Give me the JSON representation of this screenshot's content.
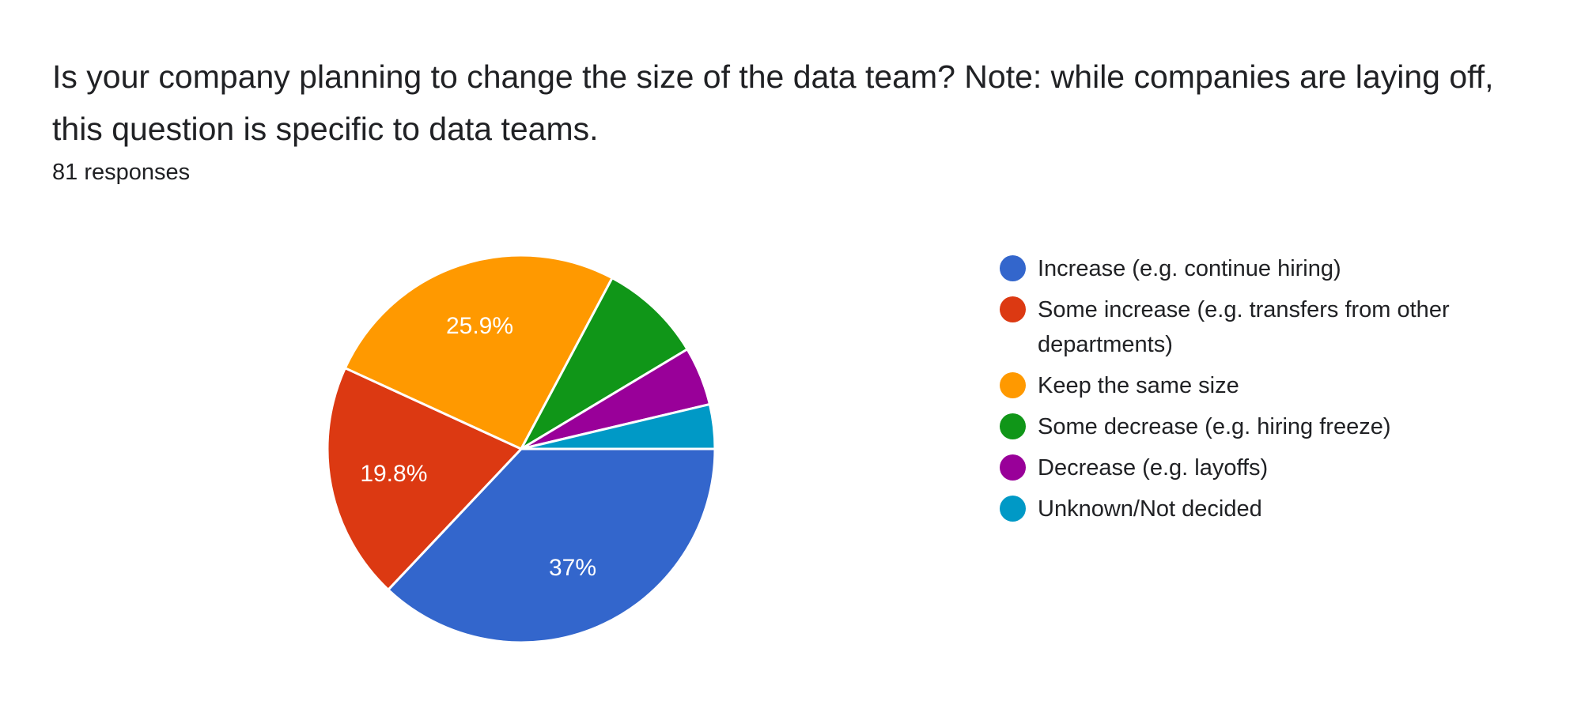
{
  "question": {
    "title": "Is your company planning to change the size of the data team? Note: while companies are laying off, this question is specific to data teams.",
    "response_count": "81 responses"
  },
  "chart_data": {
    "type": "pie",
    "title": "",
    "total_responses": 81,
    "start_direction": "3 o'clock, clockwise",
    "legend_position": "right",
    "slices": [
      {
        "label": "Increase (e.g. continue hiring)",
        "percent": 37,
        "value_label": "37%",
        "count": 30,
        "color": "#3366cc"
      },
      {
        "label": "Some increase (e.g. transfers from other departments)",
        "percent": 19.8,
        "value_label": "19.8%",
        "count": 16,
        "color": "#dc3912"
      },
      {
        "label": "Keep the same size",
        "percent": 25.9,
        "value_label": "25.9%",
        "count": 21,
        "color": "#ff9900"
      },
      {
        "label": "Some decrease (e.g. hiring freeze)",
        "percent": 8.6,
        "value_label": "",
        "count": 7,
        "color": "#109618"
      },
      {
        "label": "Decrease (e.g. layoffs)",
        "percent": 4.9,
        "value_label": "",
        "count": 4,
        "color": "#990099"
      },
      {
        "label": "Unknown/Not decided",
        "percent": 3.7,
        "value_label": "",
        "count": 3,
        "color": "#0099c6"
      }
    ]
  }
}
